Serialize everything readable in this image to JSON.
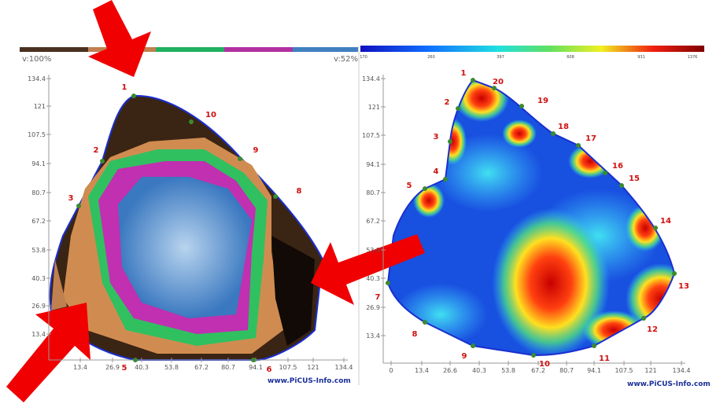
{
  "left": {
    "min_label": "v:100%",
    "max_label": "v:52%",
    "y_ticks": [
      "134.4",
      "121",
      "107.5",
      "94.1",
      "80.7",
      "67.2",
      "53.8",
      "40.3",
      "26.9",
      "13.4"
    ],
    "x_ticks": [
      "13.4",
      "26.9",
      "40.3",
      "53.8",
      "67.2",
      "80.7",
      "94.1",
      "107.5",
      "121",
      "134.4"
    ],
    "nodes": [
      "1",
      "2",
      "3",
      "5",
      "6",
      "8",
      "9",
      "10"
    ],
    "watermark": "www.PiCUS-Info.com"
  },
  "right": {
    "scale": [
      "170",
      "260",
      "397",
      "608",
      "931",
      "1376"
    ],
    "y_ticks": [
      "134.4",
      "121",
      "107.5",
      "94.1",
      "80.7",
      "67.2",
      "53.8",
      "40.3",
      "26.9",
      "13.4"
    ],
    "x_ticks": [
      "0",
      "13.4",
      "26.6",
      "40.3",
      "53.8",
      "67.2",
      "80.7",
      "94.1",
      "107.5",
      "121",
      "134.4"
    ],
    "nodes": [
      "1",
      "20",
      "19",
      "18",
      "17",
      "16",
      "15",
      "14",
      "13",
      "12",
      "11",
      "10",
      "9",
      "8",
      "7",
      "5",
      "4",
      "3",
      "2"
    ],
    "watermark": "www.PiCUS-Info.com"
  }
}
